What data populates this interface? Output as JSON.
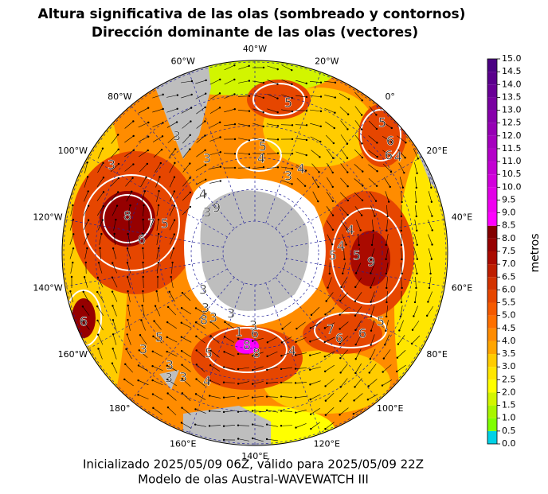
{
  "title": [
    "Altura significativa de las olas (sombreado y contornos)",
    "Dirección dominante de las olas (vectores)"
  ],
  "footer": [
    "Inicializado 2025/05/09 06Z, válido para 2025/05/09 22Z",
    "Modelo de olas Austral-WAVEWATCH III"
  ],
  "map": {
    "longitude_labels": [
      "40°W",
      "20°W",
      "0°",
      "20°E",
      "40°E",
      "60°E",
      "80°E",
      "100°E",
      "120°E",
      "140°E",
      "160°E",
      "180°",
      "160°W",
      "140°W",
      "120°W",
      "100°W",
      "80°W",
      "60°W"
    ],
    "contour_labels": [
      "5",
      "5",
      "6",
      "6",
      "4",
      "5",
      "4",
      "4",
      "3",
      "3",
      "3",
      "3",
      "4",
      "3",
      "9",
      "8",
      "7",
      "5",
      "6",
      "4",
      "5",
      "5",
      "4",
      "9",
      "3",
      "3",
      "3",
      "8",
      "3",
      "3",
      "6",
      "1",
      "8",
      "8",
      "5",
      "4",
      "3",
      "5",
      "3",
      "3",
      "3",
      "4",
      "7",
      "6",
      "6",
      "5",
      "6"
    ]
  },
  "colorbar": {
    "label": "metros",
    "ticks": [
      {
        "value": 0,
        "label": "0.0"
      },
      {
        "value": 0.5,
        "label": "0.5"
      },
      {
        "value": 1,
        "label": "1.0"
      },
      {
        "value": 1.5,
        "label": "1.5"
      },
      {
        "value": 2,
        "label": "2.0"
      },
      {
        "value": 2.5,
        "label": "2.5"
      },
      {
        "value": 3,
        "label": "3.0"
      },
      {
        "value": 3.5,
        "label": "3.5"
      },
      {
        "value": 4,
        "label": "4.0"
      },
      {
        "value": 4.5,
        "label": "4.5"
      },
      {
        "value": 5,
        "label": "5.0"
      },
      {
        "value": 5.5,
        "label": "5.5"
      },
      {
        "value": 6,
        "label": "6.0"
      },
      {
        "value": 6.5,
        "label": "6.5"
      },
      {
        "value": 7,
        "label": "7.0"
      },
      {
        "value": 7.5,
        "label": "7.5"
      },
      {
        "value": 8,
        "label": "8.0"
      },
      {
        "value": 8.5,
        "label": "8.5"
      },
      {
        "value": 9,
        "label": "9.0"
      },
      {
        "value": 9.5,
        "label": "9.5"
      },
      {
        "value": 10,
        "label": "10.0"
      },
      {
        "value": 10.5,
        "label": "10.5"
      },
      {
        "value": 11,
        "label": "11.0"
      },
      {
        "value": 11.5,
        "label": "11.5"
      },
      {
        "value": 12,
        "label": "12.0"
      },
      {
        "value": 12.5,
        "label": "12.5"
      },
      {
        "value": 13,
        "label": "13.0"
      },
      {
        "value": 13.5,
        "label": "13.5"
      },
      {
        "value": 14,
        "label": "14.0"
      },
      {
        "value": 14.5,
        "label": "14.5"
      },
      {
        "value": 15,
        "label": "15.0"
      }
    ],
    "colors": [
      "#00d2e6",
      "#7fff00",
      "#a8f500",
      "#d2f500",
      "#ffff00",
      "#ffe600",
      "#ffcc00",
      "#ffa500",
      "#ff8c00",
      "#ff7000",
      "#f55a00",
      "#e64600",
      "#d23200",
      "#be1e00",
      "#aa0a00",
      "#960000",
      "#820000",
      "#ff00ff",
      "#f000f0",
      "#e100e6",
      "#d200dc",
      "#c300d2",
      "#b400c8",
      "#a500be",
      "#9600b4",
      "#8700aa",
      "#7800a0",
      "#690096",
      "#5a008c",
      "#4b0082"
    ]
  }
}
